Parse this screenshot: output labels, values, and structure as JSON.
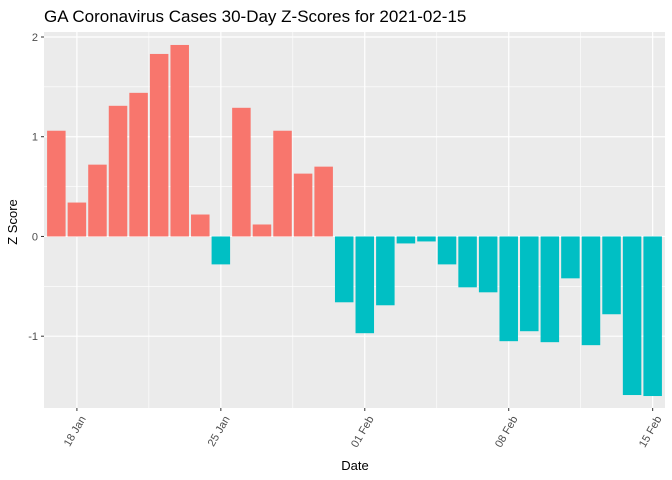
{
  "chart_data": {
    "type": "bar",
    "title": "GA Coronavirus Cases 30-Day Z-Scores for 2021-02-15",
    "xlabel": "Date",
    "ylabel": "Z Score",
    "x_start_date": "2021-01-17",
    "x_end_date": "2021-02-15",
    "x_ticks": [
      {
        "date": "2021-01-18",
        "label": "18 Jan"
      },
      {
        "date": "2021-01-25",
        "label": "25 Jan"
      },
      {
        "date": "2021-02-01",
        "label": "01 Feb"
      },
      {
        "date": "2021-02-08",
        "label": "08 Feb"
      },
      {
        "date": "2021-02-15",
        "label": "15 Feb"
      }
    ],
    "y_ticks": [
      -1,
      0,
      1,
      2
    ],
    "ylim": [
      -1.72,
      2.05
    ],
    "grid": true,
    "legend": "none",
    "colors": {
      "positive": "#F8766D",
      "negative": "#00BFC4",
      "panel": "#EBEBEB",
      "grid": "#FFFFFF"
    },
    "values": [
      1.06,
      0.34,
      0.72,
      1.31,
      1.44,
      1.83,
      1.92,
      0.22,
      -0.28,
      1.29,
      0.12,
      1.06,
      0.63,
      0.7,
      -0.66,
      -0.97,
      -0.69,
      -0.07,
      -0.05,
      -0.28,
      -0.51,
      -0.56,
      -1.05,
      -0.95,
      -1.06,
      -0.42,
      -1.09,
      -0.78,
      -1.59,
      -1.6
    ]
  }
}
